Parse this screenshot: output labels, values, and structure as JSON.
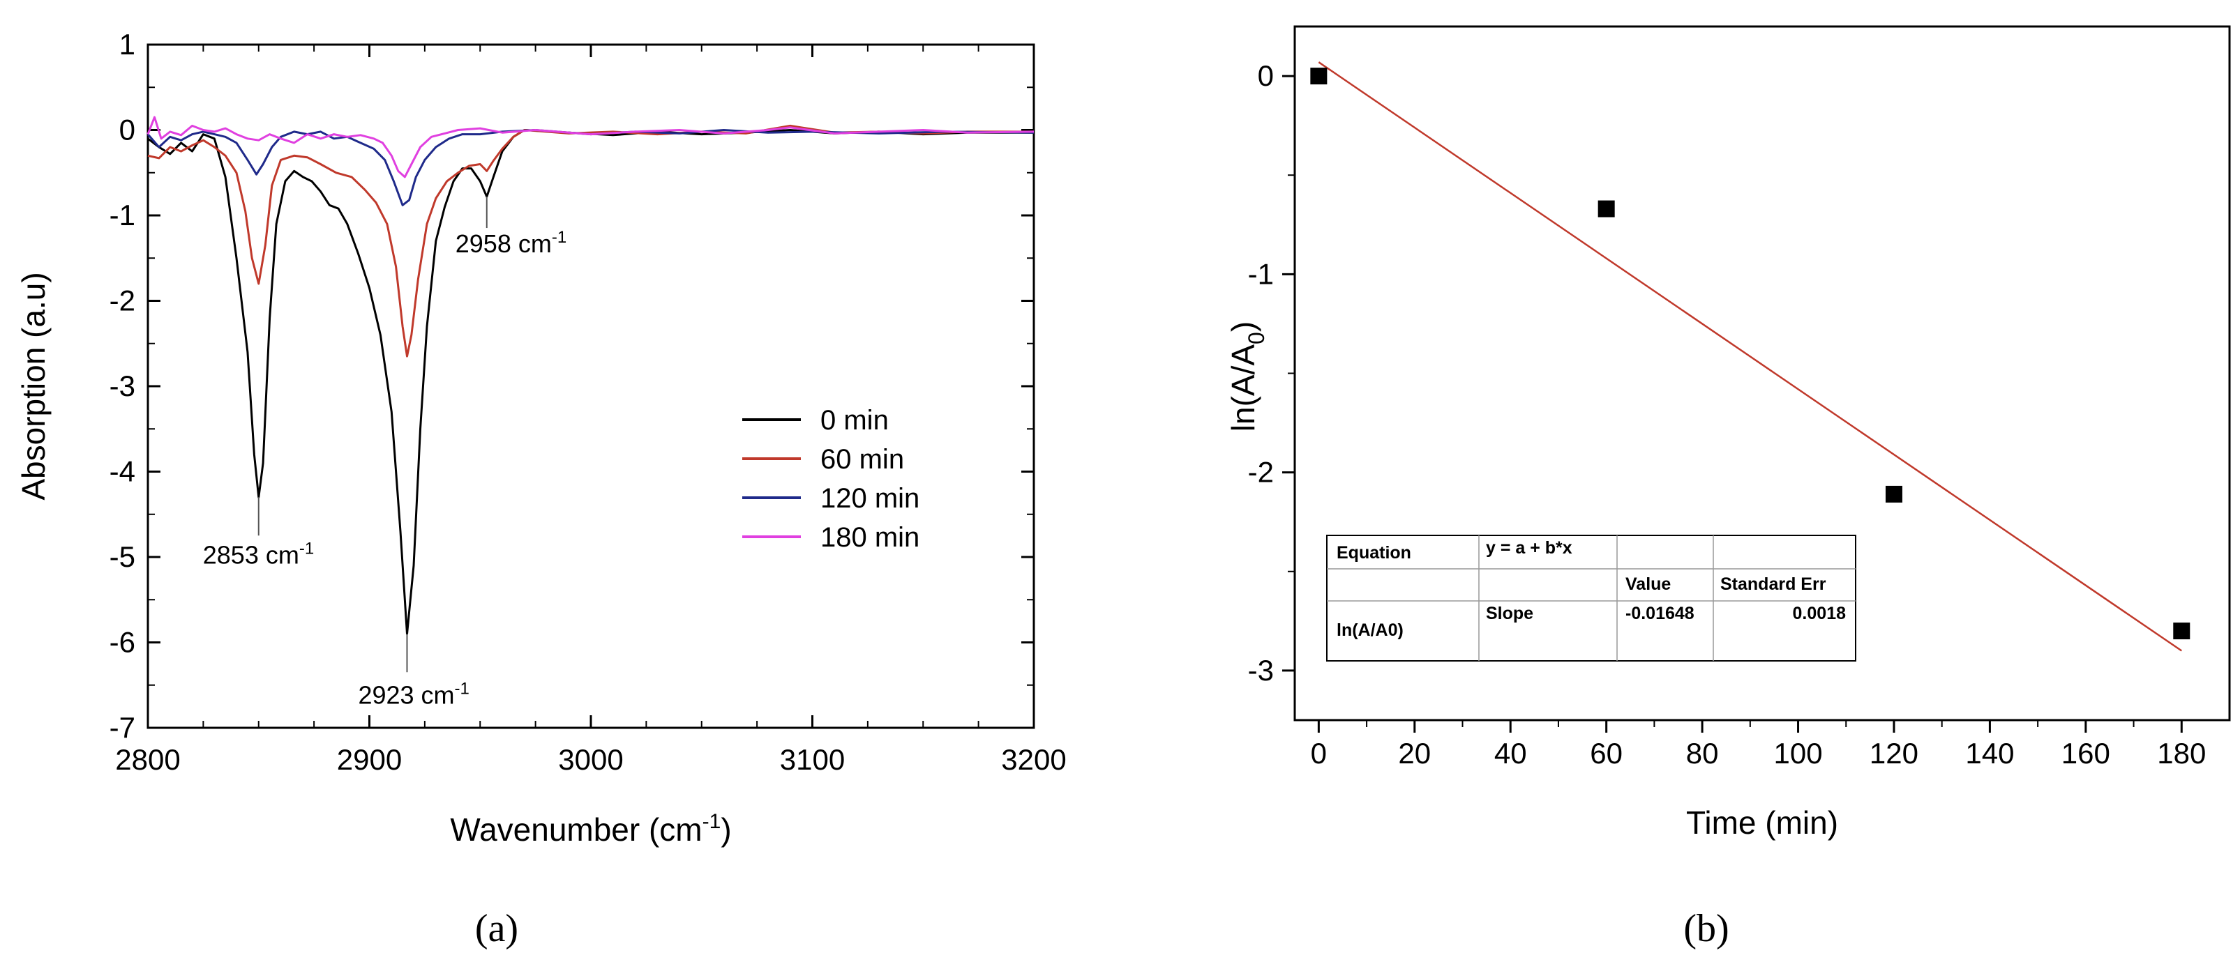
{
  "chart_data": [
    {
      "panel": "(a)",
      "type": "line",
      "xlabel": "Wavenumber (cm",
      "xlabel_sup": "-1",
      "xlabel_tail": ")",
      "ylabel": "Absorption (a.u)",
      "xlim": [
        2800,
        3200
      ],
      "ylim": [
        -7,
        1
      ],
      "xticks": [
        "2800",
        "2900",
        "3000",
        "3100",
        "3200"
      ],
      "yticks": [
        "1",
        "0",
        "-1",
        "-2",
        "-3",
        "-4",
        "-5",
        "-6",
        "-7"
      ],
      "legend_position": "right-center",
      "series": [
        {
          "name": "0 min",
          "color": "#000000",
          "points": [
            [
              2800,
              -0.1
            ],
            [
              2805,
              -0.2
            ],
            [
              2810,
              -0.28
            ],
            [
              2815,
              -0.15
            ],
            [
              2820,
              -0.25
            ],
            [
              2825,
              -0.05
            ],
            [
              2830,
              -0.1
            ],
            [
              2835,
              -0.55
            ],
            [
              2840,
              -1.5
            ],
            [
              2845,
              -2.6
            ],
            [
              2848,
              -3.8
            ],
            [
              2850,
              -4.3
            ],
            [
              2852,
              -3.9
            ],
            [
              2855,
              -2.2
            ],
            [
              2858,
              -1.1
            ],
            [
              2862,
              -0.6
            ],
            [
              2866,
              -0.48
            ],
            [
              2870,
              -0.55
            ],
            [
              2874,
              -0.6
            ],
            [
              2878,
              -0.72
            ],
            [
              2882,
              -0.88
            ],
            [
              2886,
              -0.92
            ],
            [
              2890,
              -1.1
            ],
            [
              2895,
              -1.45
            ],
            [
              2900,
              -1.85
            ],
            [
              2905,
              -2.4
            ],
            [
              2910,
              -3.3
            ],
            [
              2914,
              -4.7
            ],
            [
              2917,
              -5.9
            ],
            [
              2920,
              -5.1
            ],
            [
              2923,
              -3.5
            ],
            [
              2926,
              -2.3
            ],
            [
              2930,
              -1.3
            ],
            [
              2934,
              -0.9
            ],
            [
              2938,
              -0.6
            ],
            [
              2942,
              -0.45
            ],
            [
              2946,
              -0.45
            ],
            [
              2950,
              -0.6
            ],
            [
              2953,
              -0.78
            ],
            [
              2956,
              -0.55
            ],
            [
              2960,
              -0.25
            ],
            [
              2965,
              -0.08
            ],
            [
              2970,
              0.0
            ],
            [
              2990,
              -0.03
            ],
            [
              3010,
              -0.06
            ],
            [
              3030,
              -0.02
            ],
            [
              3050,
              -0.05
            ],
            [
              3070,
              -0.03
            ],
            [
              3090,
              0.0
            ],
            [
              3110,
              -0.04
            ],
            [
              3130,
              -0.02
            ],
            [
              3150,
              -0.05
            ],
            [
              3170,
              -0.03
            ],
            [
              3200,
              -0.03
            ]
          ]
        },
        {
          "name": "60 min",
          "color": "#c0392b",
          "points": [
            [
              2800,
              -0.3
            ],
            [
              2805,
              -0.33
            ],
            [
              2810,
              -0.2
            ],
            [
              2815,
              -0.25
            ],
            [
              2820,
              -0.18
            ],
            [
              2825,
              -0.12
            ],
            [
              2830,
              -0.2
            ],
            [
              2835,
              -0.3
            ],
            [
              2840,
              -0.5
            ],
            [
              2844,
              -0.95
            ],
            [
              2847,
              -1.5
            ],
            [
              2850,
              -1.8
            ],
            [
              2853,
              -1.35
            ],
            [
              2856,
              -0.65
            ],
            [
              2860,
              -0.35
            ],
            [
              2866,
              -0.3
            ],
            [
              2872,
              -0.32
            ],
            [
              2878,
              -0.4
            ],
            [
              2885,
              -0.5
            ],
            [
              2892,
              -0.55
            ],
            [
              2898,
              -0.7
            ],
            [
              2903,
              -0.85
            ],
            [
              2908,
              -1.1
            ],
            [
              2912,
              -1.6
            ],
            [
              2915,
              -2.3
            ],
            [
              2917,
              -2.65
            ],
            [
              2919,
              -2.4
            ],
            [
              2922,
              -1.75
            ],
            [
              2926,
              -1.1
            ],
            [
              2930,
              -0.8
            ],
            [
              2935,
              -0.6
            ],
            [
              2940,
              -0.5
            ],
            [
              2945,
              -0.42
            ],
            [
              2950,
              -0.4
            ],
            [
              2953,
              -0.48
            ],
            [
              2956,
              -0.36
            ],
            [
              2960,
              -0.22
            ],
            [
              2965,
              -0.08
            ],
            [
              2970,
              0.0
            ],
            [
              2990,
              -0.04
            ],
            [
              3010,
              -0.02
            ],
            [
              3030,
              -0.05
            ],
            [
              3050,
              -0.02
            ],
            [
              3070,
              -0.04
            ],
            [
              3090,
              0.05
            ],
            [
              3110,
              -0.03
            ],
            [
              3130,
              -0.02
            ],
            [
              3150,
              -0.04
            ],
            [
              3170,
              -0.02
            ],
            [
              3200,
              -0.02
            ]
          ]
        },
        {
          "name": "120 min",
          "color": "#1f2a8a",
          "points": [
            [
              2800,
              -0.05
            ],
            [
              2805,
              -0.2
            ],
            [
              2810,
              -0.08
            ],
            [
              2815,
              -0.12
            ],
            [
              2820,
              -0.05
            ],
            [
              2825,
              -0.02
            ],
            [
              2830,
              -0.05
            ],
            [
              2835,
              -0.08
            ],
            [
              2840,
              -0.15
            ],
            [
              2845,
              -0.35
            ],
            [
              2849,
              -0.52
            ],
            [
              2852,
              -0.4
            ],
            [
              2856,
              -0.2
            ],
            [
              2860,
              -0.08
            ],
            [
              2866,
              -0.02
            ],
            [
              2872,
              -0.05
            ],
            [
              2878,
              -0.02
            ],
            [
              2884,
              -0.1
            ],
            [
              2890,
              -0.08
            ],
            [
              2896,
              -0.15
            ],
            [
              2902,
              -0.22
            ],
            [
              2907,
              -0.35
            ],
            [
              2911,
              -0.6
            ],
            [
              2915,
              -0.88
            ],
            [
              2918,
              -0.82
            ],
            [
              2921,
              -0.55
            ],
            [
              2925,
              -0.35
            ],
            [
              2930,
              -0.2
            ],
            [
              2936,
              -0.1
            ],
            [
              2942,
              -0.05
            ],
            [
              2950,
              -0.05
            ],
            [
              2960,
              -0.02
            ],
            [
              2975,
              0.0
            ],
            [
              3000,
              -0.05
            ],
            [
              3020,
              -0.02
            ],
            [
              3040,
              -0.04
            ],
            [
              3060,
              0.0
            ],
            [
              3080,
              -0.03
            ],
            [
              3100,
              -0.02
            ],
            [
              3130,
              -0.04
            ],
            [
              3160,
              -0.02
            ],
            [
              3200,
              -0.03
            ]
          ]
        },
        {
          "name": "180 min",
          "color": "#e040e0",
          "points": [
            [
              2800,
              -0.05
            ],
            [
              2803,
              0.15
            ],
            [
              2806,
              -0.1
            ],
            [
              2810,
              -0.02
            ],
            [
              2815,
              -0.06
            ],
            [
              2820,
              0.05
            ],
            [
              2825,
              0.0
            ],
            [
              2830,
              -0.02
            ],
            [
              2835,
              0.02
            ],
            [
              2840,
              -0.05
            ],
            [
              2845,
              -0.1
            ],
            [
              2850,
              -0.12
            ],
            [
              2855,
              -0.05
            ],
            [
              2860,
              -0.1
            ],
            [
              2866,
              -0.15
            ],
            [
              2872,
              -0.05
            ],
            [
              2878,
              -0.1
            ],
            [
              2884,
              -0.05
            ],
            [
              2890,
              -0.08
            ],
            [
              2896,
              -0.06
            ],
            [
              2902,
              -0.1
            ],
            [
              2906,
              -0.15
            ],
            [
              2910,
              -0.3
            ],
            [
              2913,
              -0.48
            ],
            [
              2916,
              -0.55
            ],
            [
              2919,
              -0.4
            ],
            [
              2923,
              -0.2
            ],
            [
              2928,
              -0.08
            ],
            [
              2934,
              -0.04
            ],
            [
              2940,
              0.0
            ],
            [
              2950,
              0.02
            ],
            [
              2960,
              -0.03
            ],
            [
              2975,
              0.0
            ],
            [
              3000,
              -0.05
            ],
            [
              3020,
              -0.02
            ],
            [
              3040,
              0.0
            ],
            [
              3060,
              -0.04
            ],
            [
              3080,
              0.0
            ],
            [
              3090,
              0.03
            ],
            [
              3110,
              -0.04
            ],
            [
              3130,
              -0.02
            ],
            [
              3150,
              0.0
            ],
            [
              3170,
              -0.03
            ],
            [
              3200,
              -0.02
            ]
          ]
        }
      ],
      "annotations": [
        {
          "text": "2853 cm",
          "sup": "-1",
          "x": 2850,
          "y": -4.3
        },
        {
          "text": "2923 cm",
          "sup": "-1",
          "x": 2917,
          "y": -5.9
        },
        {
          "text": "2958 cm",
          "sup": "-1",
          "x": 2953,
          "y": -0.78
        }
      ]
    },
    {
      "panel": "(b)",
      "type": "scatter",
      "xlabel": "Time (min)",
      "ylabel": "ln(A/A",
      "ylabel_sub": "0",
      "ylabel_tail": ")",
      "xlim": [
        -5,
        190
      ],
      "ylim": [
        -3.25,
        0.25
      ],
      "xticks": [
        "0",
        "20",
        "40",
        "60",
        "80",
        "100",
        "120",
        "140",
        "160",
        "180"
      ],
      "yticks": [
        "0",
        "-1",
        "-2",
        "-3"
      ],
      "points": {
        "x": [
          0,
          60,
          120,
          180
        ],
        "y": [
          0,
          -0.67,
          -2.11,
          -2.8
        ]
      },
      "fit_line": {
        "color": "#c0392b",
        "x": [
          0,
          180
        ],
        "y": [
          0.07,
          -2.9
        ]
      },
      "fit_table": {
        "r1": [
          "Equation",
          "y = a + b*x",
          "",
          ""
        ],
        "r2": [
          "",
          "",
          "Value",
          "Standard Err"
        ],
        "r3_name": "ln(A/A0)",
        "r3": [
          "Slope",
          "-0.01648",
          "0.0018"
        ]
      }
    }
  ],
  "legend_color_stroke": "#000000"
}
